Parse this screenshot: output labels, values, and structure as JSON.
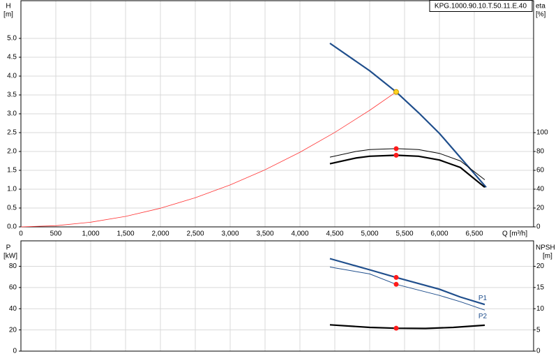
{
  "chart_data": [
    {
      "type": "line",
      "title": "KPG.1000.90.10.T.50.11.E.40",
      "ylabel": "H",
      "yunit": "[m]",
      "y2label": "eta",
      "y2unit": "[%]",
      "xlabel": "Q [m³/h]",
      "xlim": [
        0,
        7350
      ],
      "xticks": [
        0,
        500,
        {
          "value": 1000,
          "label": "1,000"
        },
        {
          "value": 1500,
          "label": "1,500"
        },
        {
          "value": 2000,
          "label": "2,000"
        },
        {
          "value": 2500,
          "label": "2,500"
        },
        {
          "value": 3000,
          "label": "3,000"
        },
        {
          "value": 3500,
          "label": "3,500"
        },
        {
          "value": 4000,
          "label": "4,000"
        },
        {
          "value": 4500,
          "label": "4,500"
        },
        {
          "value": 5000,
          "label": "5,000"
        },
        {
          "value": 5500,
          "label": "5,500"
        },
        {
          "value": 6000,
          "label": "6,000"
        },
        {
          "value": 6500,
          "label": "6,500"
        }
      ],
      "ylim": [
        0,
        6
      ],
      "yticks": [
        {
          "value": 0,
          "label": "0.0"
        },
        0.5,
        {
          "value": 1,
          "label": "1.0"
        },
        1.5,
        {
          "value": 2,
          "label": "2.0"
        },
        2.5,
        {
          "value": 3,
          "label": "3.0"
        },
        3.5,
        {
          "value": 4,
          "label": "4.0"
        },
        4.5,
        {
          "value": 5,
          "label": "5.0"
        }
      ],
      "y2lim": [
        0,
        240
      ],
      "y2ticks": [
        0,
        20,
        40,
        60,
        80,
        100
      ],
      "grid": true,
      "series": [
        {
          "color": "#ff3333",
          "width": 0.8,
          "x": [
            0,
            500,
            1000,
            1500,
            2000,
            2500,
            3000,
            3500,
            4000,
            4500,
            5000,
            5380
          ],
          "values": [
            0,
            0.031,
            0.124,
            0.278,
            0.495,
            0.773,
            1.113,
            1.515,
            1.979,
            2.505,
            3.092,
            3.58
          ]
        },
        {
          "color": "#1f4e8c",
          "width": 2.2,
          "x": [
            4430,
            5000,
            5380,
            5700,
            6000,
            6300,
            6670
          ],
          "values": [
            4.87,
            4.14,
            3.58,
            3.03,
            2.48,
            1.84,
            1.05
          ]
        },
        {
          "color": "#000000",
          "width": 1,
          "axis": "y2",
          "x": [
            4430,
            4800,
            5000,
            5380,
            5700,
            6000,
            6300,
            6650
          ],
          "values": [
            74,
            80,
            82,
            83,
            82,
            78,
            70,
            50
          ]
        },
        {
          "color": "#000000",
          "width": 2.2,
          "axis": "y2",
          "x": [
            4430,
            4800,
            5000,
            5380,
            5700,
            6000,
            6300,
            6650
          ],
          "values": [
            67,
            73,
            75,
            76,
            75,
            71,
            63,
            42
          ]
        }
      ],
      "markers": [
        {
          "x": 5380,
          "y": 3.58,
          "color": "#ffd21f"
        },
        {
          "x": 5380,
          "y": 83,
          "color": "#ff1a1a",
          "axis": "y2"
        },
        {
          "x": 5380,
          "y": 76,
          "color": "#ff1a1a",
          "axis": "y2"
        }
      ]
    },
    {
      "type": "line",
      "ylabel": "P",
      "yunit": "[kW]",
      "y2label": "NPSH",
      "y2unit": "[m]",
      "xlim": [
        0,
        7350
      ],
      "xticks": [
        0,
        500,
        1000,
        1500,
        2000,
        2500,
        3000,
        3500,
        4000,
        4500,
        5000,
        5500,
        6000,
        6500
      ],
      "ylim": [
        0,
        104
      ],
      "yticks": [
        0,
        20,
        40,
        60,
        80
      ],
      "y2lim": [
        0,
        26
      ],
      "y2ticks": [
        0,
        5,
        10,
        15,
        20
      ],
      "grid": true,
      "series": [
        {
          "name": "P1",
          "color": "#1f4e8c",
          "width": 2.2,
          "x": [
            4430,
            5000,
            5380,
            6000,
            6300,
            6650
          ],
          "values": [
            87.2,
            76.7,
            69.5,
            58.4,
            51,
            44
          ]
        },
        {
          "name": "P2",
          "color": "#1f4e8c",
          "width": 1,
          "x": [
            4430,
            5000,
            5380,
            6000,
            6300,
            6650
          ],
          "values": [
            79.3,
            72.8,
            63,
            52.5,
            46.6,
            38.7
          ]
        },
        {
          "color": "#000000",
          "width": 2.2,
          "axis": "y2",
          "x": [
            4430,
            5000,
            5380,
            5800,
            6200,
            6650
          ],
          "values": [
            6.2,
            5.6,
            5.4,
            5.35,
            5.6,
            6.1
          ]
        }
      ],
      "markers": [
        {
          "x": 5380,
          "y": 69.5,
          "color": "#ff1a1a"
        },
        {
          "x": 5380,
          "y": 63,
          "color": "#ff1a1a"
        },
        {
          "x": 5380,
          "y": 5.4,
          "color": "#ff1a1a",
          "axis": "y2"
        }
      ]
    }
  ]
}
